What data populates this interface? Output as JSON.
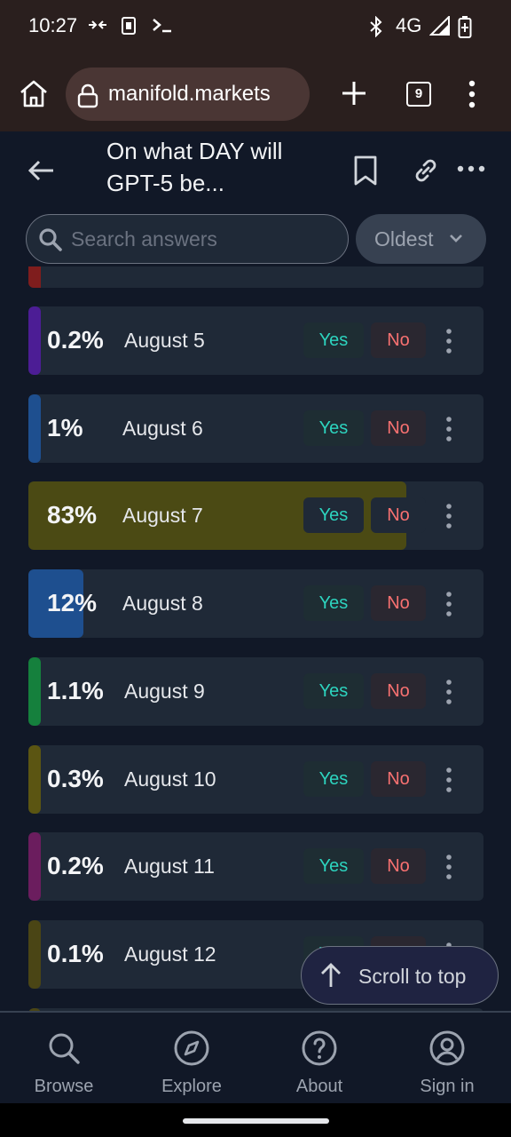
{
  "status_bar": {
    "time": "10:27",
    "network": "4G"
  },
  "browser": {
    "url": "manifold.markets",
    "tab_count": "9"
  },
  "header": {
    "title": "On what DAY will GPT-5 be..."
  },
  "search": {
    "placeholder": "Search answers",
    "value": ""
  },
  "sort": {
    "label": "Oldest"
  },
  "answers": [
    {
      "pct": "0.2%",
      "label": "August 5",
      "color": "#4c1d95",
      "fill": 0.002
    },
    {
      "pct": "1%",
      "label": "August 6",
      "color": "#1e4f8f",
      "fill": 0.01
    },
    {
      "pct": "83%",
      "label": "August 7",
      "color": "#4b4a14",
      "fill": 0.83
    },
    {
      "pct": "12%",
      "label": "August 8",
      "color": "#1e4f8f",
      "fill": 0.12
    },
    {
      "pct": "1.1%",
      "label": "August 9",
      "color": "#15803d",
      "fill": 0.011
    },
    {
      "pct": "0.3%",
      "label": "August 10",
      "color": "#5b5512",
      "fill": 0.003
    },
    {
      "pct": "0.2%",
      "label": "August 11",
      "color": "#6b1d5e",
      "fill": 0.002
    },
    {
      "pct": "0.1%",
      "label": "August 12",
      "color": "#4a4515",
      "fill": 0.001
    }
  ],
  "buttons": {
    "yes": "Yes",
    "no": "No",
    "scroll_to_top": "Scroll to top"
  },
  "nav": {
    "browse": "Browse",
    "explore": "Explore",
    "about": "About",
    "sign_in": "Sign in"
  }
}
